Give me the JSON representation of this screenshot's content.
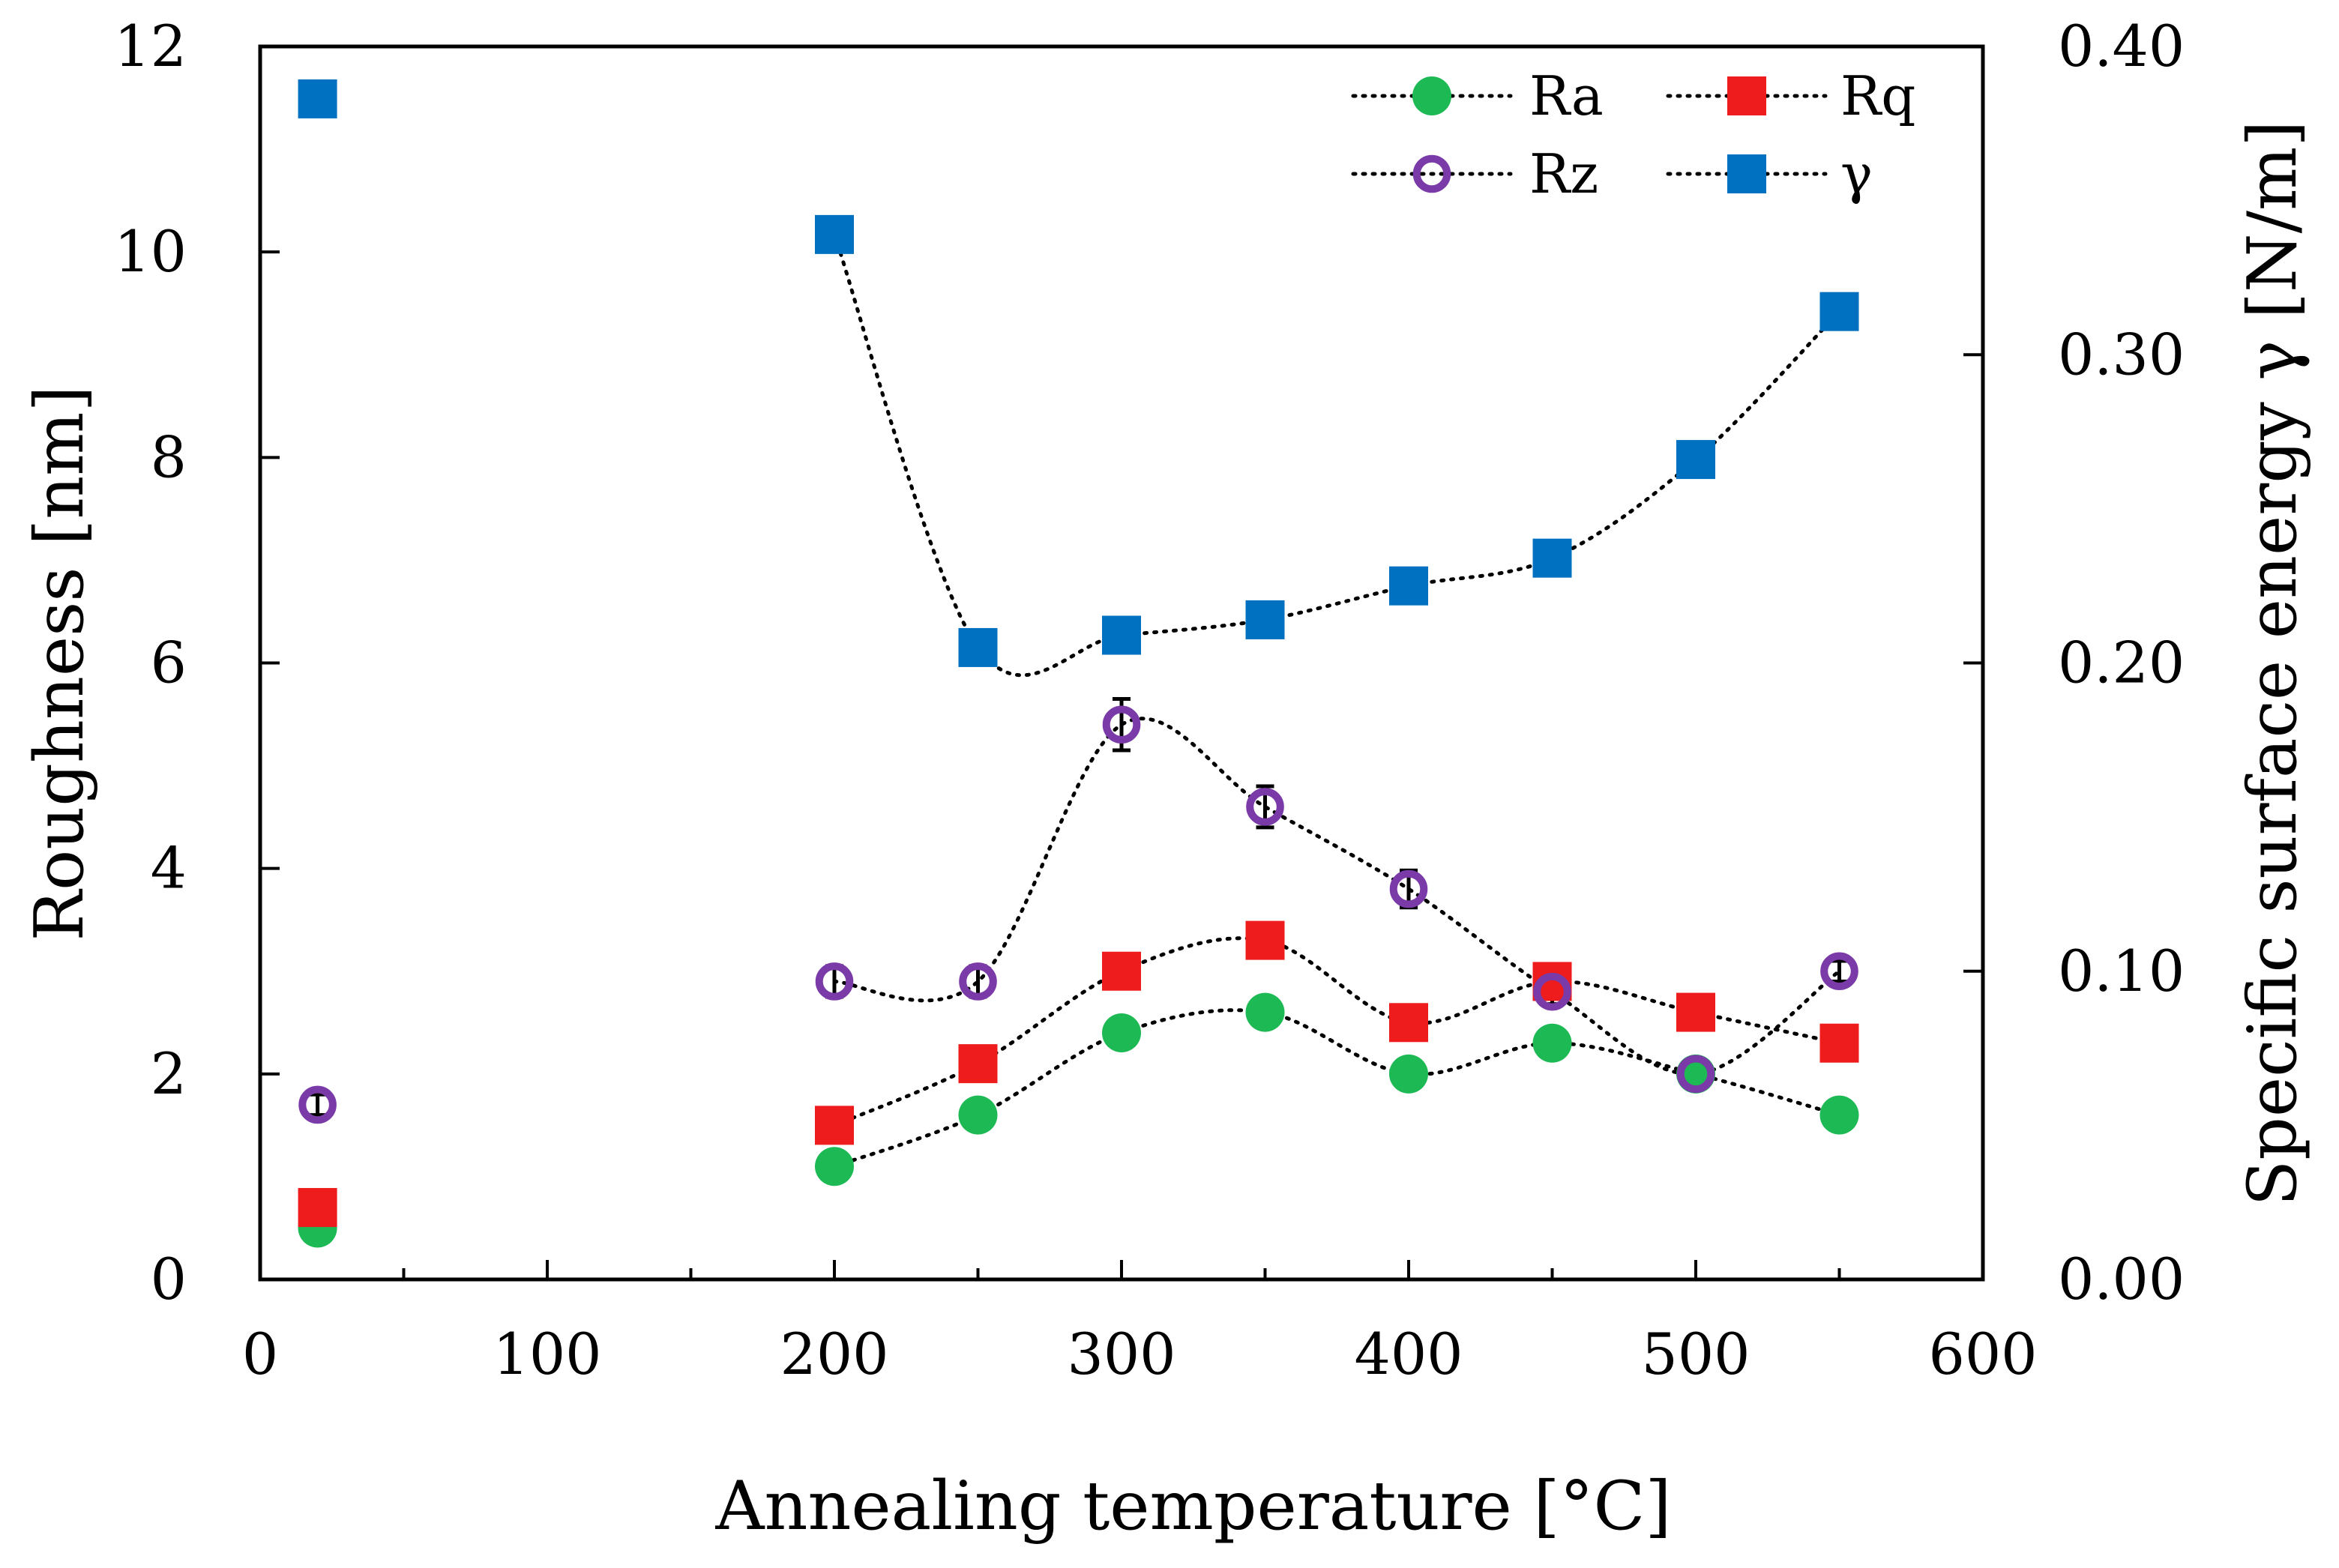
{
  "chart_data": {
    "type": "scatter",
    "title": "",
    "xlabel": "Annealing temperature [°C]",
    "ylabel_left": "Roughness [nm]",
    "ylabel_right": "Specific surface energy γ [N/m]",
    "xlim": [
      0,
      600
    ],
    "ylim_left": [
      0,
      12
    ],
    "ylim_right": [
      0.0,
      0.4
    ],
    "x_ticks": [
      0,
      100,
      200,
      300,
      400,
      500,
      600
    ],
    "x_tick_labels": [
      "0",
      "100",
      "200",
      "300",
      "400",
      "500",
      "600"
    ],
    "y_left_ticks": [
      0,
      2,
      4,
      6,
      8,
      10,
      12
    ],
    "y_left_tick_labels": [
      "0",
      "2",
      "4",
      "6",
      "8",
      "10",
      "12"
    ],
    "y_right_ticks": [
      0.0,
      0.1,
      0.2,
      0.3,
      0.4
    ],
    "y_right_tick_labels": [
      "0.00",
      "0.10",
      "0.20",
      "0.30",
      "0.40"
    ],
    "legend_position": "top-right",
    "series": [
      {
        "name": "Ra",
        "axis": "left",
        "marker": "circle-filled",
        "color": "#1db954",
        "x": [
          20,
          200,
          250,
          300,
          350,
          400,
          450,
          500,
          550
        ],
        "values": [
          0.5,
          1.1,
          1.6,
          2.4,
          2.6,
          2.0,
          2.3,
          2.0,
          1.6
        ],
        "errors": [
          0.02,
          0.03,
          0.03,
          0.03,
          0.03,
          0.03,
          0.03,
          0.03,
          0.03
        ]
      },
      {
        "name": "Rq",
        "axis": "left",
        "marker": "square-filled",
        "color": "#ee1c1c",
        "x": [
          20,
          200,
          250,
          300,
          350,
          400,
          450,
          500,
          550
        ],
        "values": [
          0.7,
          1.5,
          2.1,
          3.0,
          3.3,
          2.5,
          2.9,
          2.6,
          2.3
        ],
        "errors": [
          0.03,
          0.04,
          0.04,
          0.05,
          0.05,
          0.04,
          0.04,
          0.04,
          0.04
        ]
      },
      {
        "name": "Rz",
        "axis": "left",
        "marker": "circle-open",
        "color": "#7a3aa8",
        "x": [
          20,
          200,
          250,
          300,
          350,
          400,
          450,
          500,
          550
        ],
        "values": [
          1.7,
          2.9,
          2.9,
          5.4,
          4.6,
          3.8,
          2.8,
          2.0,
          3.0
        ],
        "errors": [
          0.1,
          0.15,
          0.15,
          0.25,
          0.2,
          0.18,
          0.12,
          0.08,
          0.1
        ]
      },
      {
        "name": "γ",
        "axis": "right",
        "marker": "square-filled",
        "color": "#0070c0",
        "x": [
          20,
          200,
          250,
          300,
          350,
          400,
          450,
          500,
          550
        ],
        "values": [
          0.383,
          0.339,
          0.205,
          0.209,
          0.214,
          0.225,
          0.234,
          0.266,
          0.314
        ]
      }
    ]
  }
}
